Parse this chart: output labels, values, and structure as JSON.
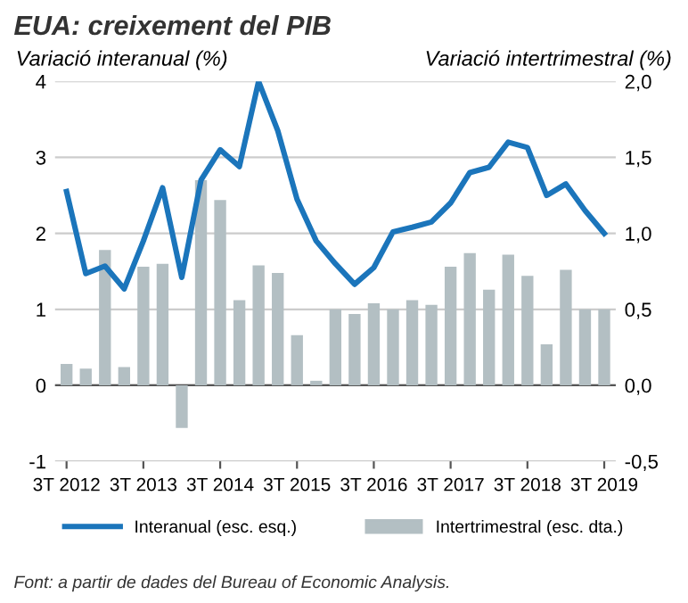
{
  "chart_data": {
    "type": "bar",
    "title": "EUA: creixement del PIB",
    "ylabel": "Variació interanual (%)",
    "y2label": "Variació intertrimestral (%)",
    "categories": [
      "3T 2012",
      null,
      null,
      null,
      "3T 2013",
      null,
      null,
      null,
      "3T 2014",
      null,
      null,
      null,
      "3T 2015",
      null,
      null,
      null,
      "3T 2016",
      null,
      null,
      null,
      "3T 2017",
      null,
      null,
      null,
      "3T 2018",
      null,
      null,
      null,
      "3T 2019"
    ],
    "series": [
      {
        "name": "Interanual (esc. esq.)",
        "type": "line",
        "color": "#1b75bb",
        "values": [
          2.55,
          1.47,
          1.57,
          1.27,
          1.9,
          2.6,
          1.42,
          2.7,
          3.1,
          2.88,
          4.0,
          3.35,
          2.45,
          1.9,
          1.6,
          1.33,
          1.55,
          2.02,
          2.08,
          2.15,
          2.4,
          2.8,
          2.87,
          3.2,
          3.13,
          2.5,
          2.65,
          2.3,
          2.0
        ]
      },
      {
        "name": "Intertrimestral (esc. dta.)",
        "axis": "y2",
        "color": "#b3bfc3",
        "values": [
          0.14,
          0.11,
          0.89,
          0.12,
          0.78,
          0.8,
          -0.28,
          1.35,
          1.22,
          0.56,
          0.79,
          0.74,
          0.33,
          0.03,
          0.5,
          0.47,
          0.54,
          0.5,
          0.56,
          0.53,
          0.78,
          0.87,
          0.63,
          0.86,
          0.72,
          0.27,
          0.76,
          0.5,
          0.5
        ]
      }
    ],
    "ylim": [
      -1,
      4
    ],
    "yticks": [
      -1,
      0,
      1,
      2,
      3,
      4
    ],
    "y2lim": [
      -0.5,
      2.0
    ],
    "y2ticks": [
      {
        "value": -0.5,
        "label": "-0,5"
      },
      {
        "value": 0,
        "label": "0,0"
      },
      {
        "value": 0.5,
        "label": "0,5"
      },
      {
        "value": 1.0,
        "label": "1,0"
      },
      {
        "value": 1.5,
        "label": "1,5"
      },
      {
        "value": 2.0,
        "label": "2,0"
      }
    ],
    "grid": "y",
    "legend": "bottom",
    "annotations": [
      "Font: a partir de dades del Bureau of Economic Analysis."
    ]
  }
}
